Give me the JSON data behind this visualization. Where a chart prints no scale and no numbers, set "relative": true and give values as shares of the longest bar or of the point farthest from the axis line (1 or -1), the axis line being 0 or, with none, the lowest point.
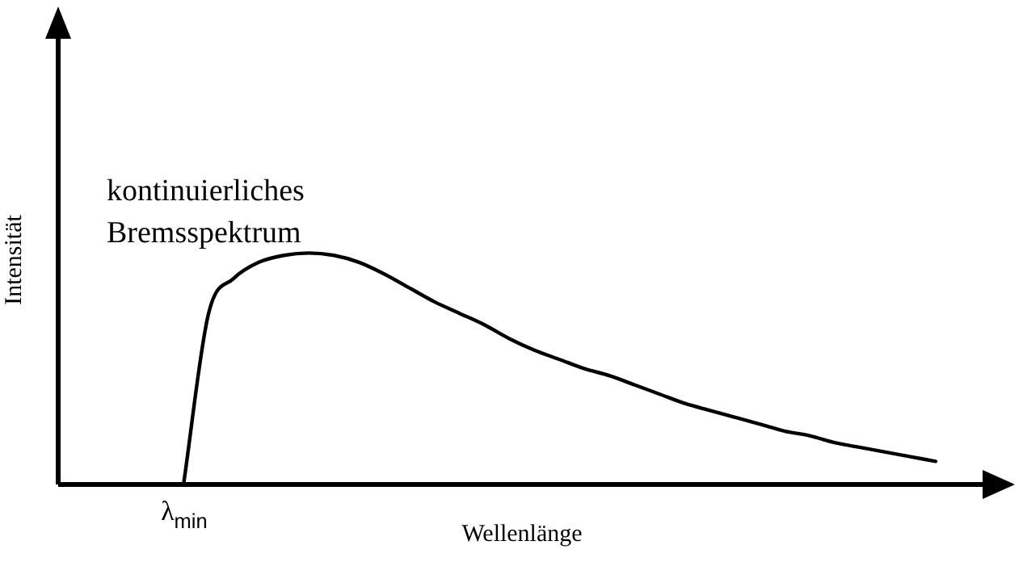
{
  "chart_data": {
    "type": "line",
    "relative": true,
    "xlabel": "Wellenlänge",
    "ylabel": "Intensität",
    "categories": [
      null,
      null,
      null,
      null,
      null,
      null,
      null,
      null,
      null,
      null,
      null,
      null,
      null,
      null,
      null,
      null,
      null,
      null,
      null,
      null,
      null,
      null,
      null,
      null,
      null,
      null,
      null,
      null,
      null,
      null,
      null,
      null,
      null,
      null,
      null,
      null,
      null,
      null
    ],
    "series": [
      {
        "color": "#000000",
        "values": [
          null,
          null,
          null,
          null,
          null,
          0,
          0.74,
          0.89,
          0.96,
          0.99,
          1,
          0.99,
          0.96,
          0.91,
          0.85,
          0.79,
          0.74,
          0.69,
          0.63,
          0.58,
          0.54,
          0.5,
          0.47,
          0.43,
          0.39,
          0.35,
          0.32,
          0.29,
          0.26,
          0.23,
          0.21,
          0.18,
          0.16,
          0.14,
          0.12,
          0.1,
          null,
          null
        ]
      }
    ],
    "annotations": [
      "kontinuierliches\nBremsspektrum",
      "λ$_{min}$"
    ],
    "tick_labels": false,
    "grid": false,
    "legend": false,
    "marker": "none",
    "line_style": "solid"
  }
}
